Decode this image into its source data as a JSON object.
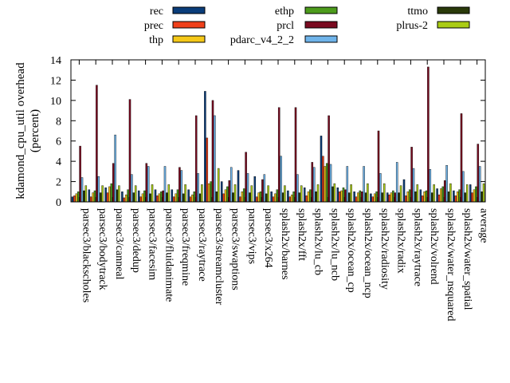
{
  "chart_data": {
    "type": "bar",
    "title": "",
    "xlabel": "",
    "ylabel": "kdamond_cpu_util overhead",
    "ylabel_unit": "(percent)",
    "ylim": [
      0,
      14
    ],
    "yticks": [
      "0",
      "2",
      "4",
      "6",
      "8",
      "10",
      "12",
      "14"
    ],
    "grid": false,
    "legend_position": "top",
    "categories": [
      "parsec3/blackscholes",
      "parsec3/bodytrack",
      "parsec3/canneal",
      "parsec3/dedup",
      "parsec3/facesim",
      "parsec3/fluidanimate",
      "parsec3/freqmine",
      "parsec3/raytrace",
      "parsec3/streamcluster",
      "parsec3/swaptions",
      "parsec3/vips",
      "parsec3/x264",
      "splash2x/barnes",
      "splash2x/fft",
      "splash2x/lu_cb",
      "splash2x/lu_ncb",
      "splash2x/ocean_cp",
      "splash2x/ocean_ncp",
      "splash2x/radiosity",
      "splash2x/radix",
      "splash2x/raytrace",
      "splash2x/volrend",
      "splash2x/water_nsquared",
      "splash2x/water_spatial",
      "average"
    ],
    "series": [
      {
        "name": "rec",
        "color": "#0a3d7a",
        "values": [
          0.5,
          1.2,
          1.4,
          1.0,
          1.1,
          1.2,
          1.2,
          1.2,
          10.9,
          2.0,
          3.1,
          2.5,
          1.0,
          1.1,
          1.4,
          6.5,
          1.4,
          1.0,
          0.8,
          0.9,
          2.2,
          1.2,
          1.3,
          1.1,
          1.7
        ]
      },
      {
        "name": "prec",
        "color": "#f0401a",
        "values": [
          0.6,
          0.5,
          0.9,
          0.4,
          0.5,
          0.6,
          0.5,
          0.5,
          6.3,
          0.8,
          0.5,
          0.5,
          0.5,
          0.5,
          0.6,
          4.5,
          1.0,
          0.5,
          0.5,
          0.7,
          0.6,
          0.6,
          0.7,
          0.6,
          0.9
        ]
      },
      {
        "name": "thp",
        "color": "#f5c818",
        "values": [
          0.8,
          0.9,
          1.5,
          0.7,
          0.8,
          0.8,
          0.8,
          0.7,
          1.8,
          1.2,
          1.0,
          0.9,
          0.8,
          0.7,
          1.0,
          3.5,
          1.1,
          0.9,
          0.8,
          0.9,
          1.0,
          1.0,
          1.3,
          1.0,
          1.2
        ]
      },
      {
        "name": "ethp",
        "color": "#4d9c1c",
        "values": [
          1.0,
          1.1,
          1.8,
          1.2,
          1.1,
          1.0,
          1.2,
          1.0,
          2.0,
          1.5,
          1.3,
          1.0,
          1.2,
          1.0,
          1.2,
          3.8,
          1.4,
          1.1,
          1.0,
          1.1,
          1.2,
          1.1,
          1.5,
          1.2,
          1.5
        ]
      },
      {
        "name": "prcl",
        "color": "#7a0a20",
        "values": [
          5.5,
          11.5,
          3.8,
          10.1,
          3.8,
          1.1,
          3.4,
          8.5,
          10.0,
          2.1,
          4.9,
          2.2,
          9.3,
          9.3,
          3.9,
          8.5,
          1.2,
          1.0,
          7.0,
          0.9,
          5.4,
          13.3,
          2.1,
          8.7,
          5.7
        ]
      },
      {
        "name": "pdarc_v4_2_2",
        "color": "#6fb4ea",
        "values": [
          2.4,
          2.5,
          6.6,
          2.7,
          3.5,
          3.5,
          3.1,
          2.8,
          8.5,
          3.4,
          2.8,
          2.7,
          4.5,
          2.7,
          3.4,
          3.7,
          3.5,
          3.5,
          2.8,
          3.9,
          3.3,
          3.2,
          3.6,
          3.0,
          3.5
        ]
      },
      {
        "name": "ttmo",
        "color": "#2a3a0a",
        "values": [
          1.1,
          0.9,
          1.2,
          0.9,
          0.8,
          0.9,
          0.8,
          0.8,
          1.0,
          0.9,
          0.9,
          0.8,
          0.9,
          0.9,
          1.0,
          1.5,
          0.9,
          0.9,
          0.9,
          0.9,
          1.0,
          0.9,
          1.0,
          0.9,
          1.0
        ]
      },
      {
        "name": "plrus-2",
        "color": "#aacc14",
        "values": [
          1.6,
          1.6,
          1.6,
          1.6,
          1.7,
          1.7,
          1.7,
          1.7,
          3.3,
          1.7,
          1.6,
          1.6,
          1.6,
          1.6,
          1.7,
          1.8,
          1.7,
          1.8,
          1.8,
          1.6,
          1.7,
          1.7,
          1.8,
          1.7,
          1.8
        ]
      }
    ]
  }
}
